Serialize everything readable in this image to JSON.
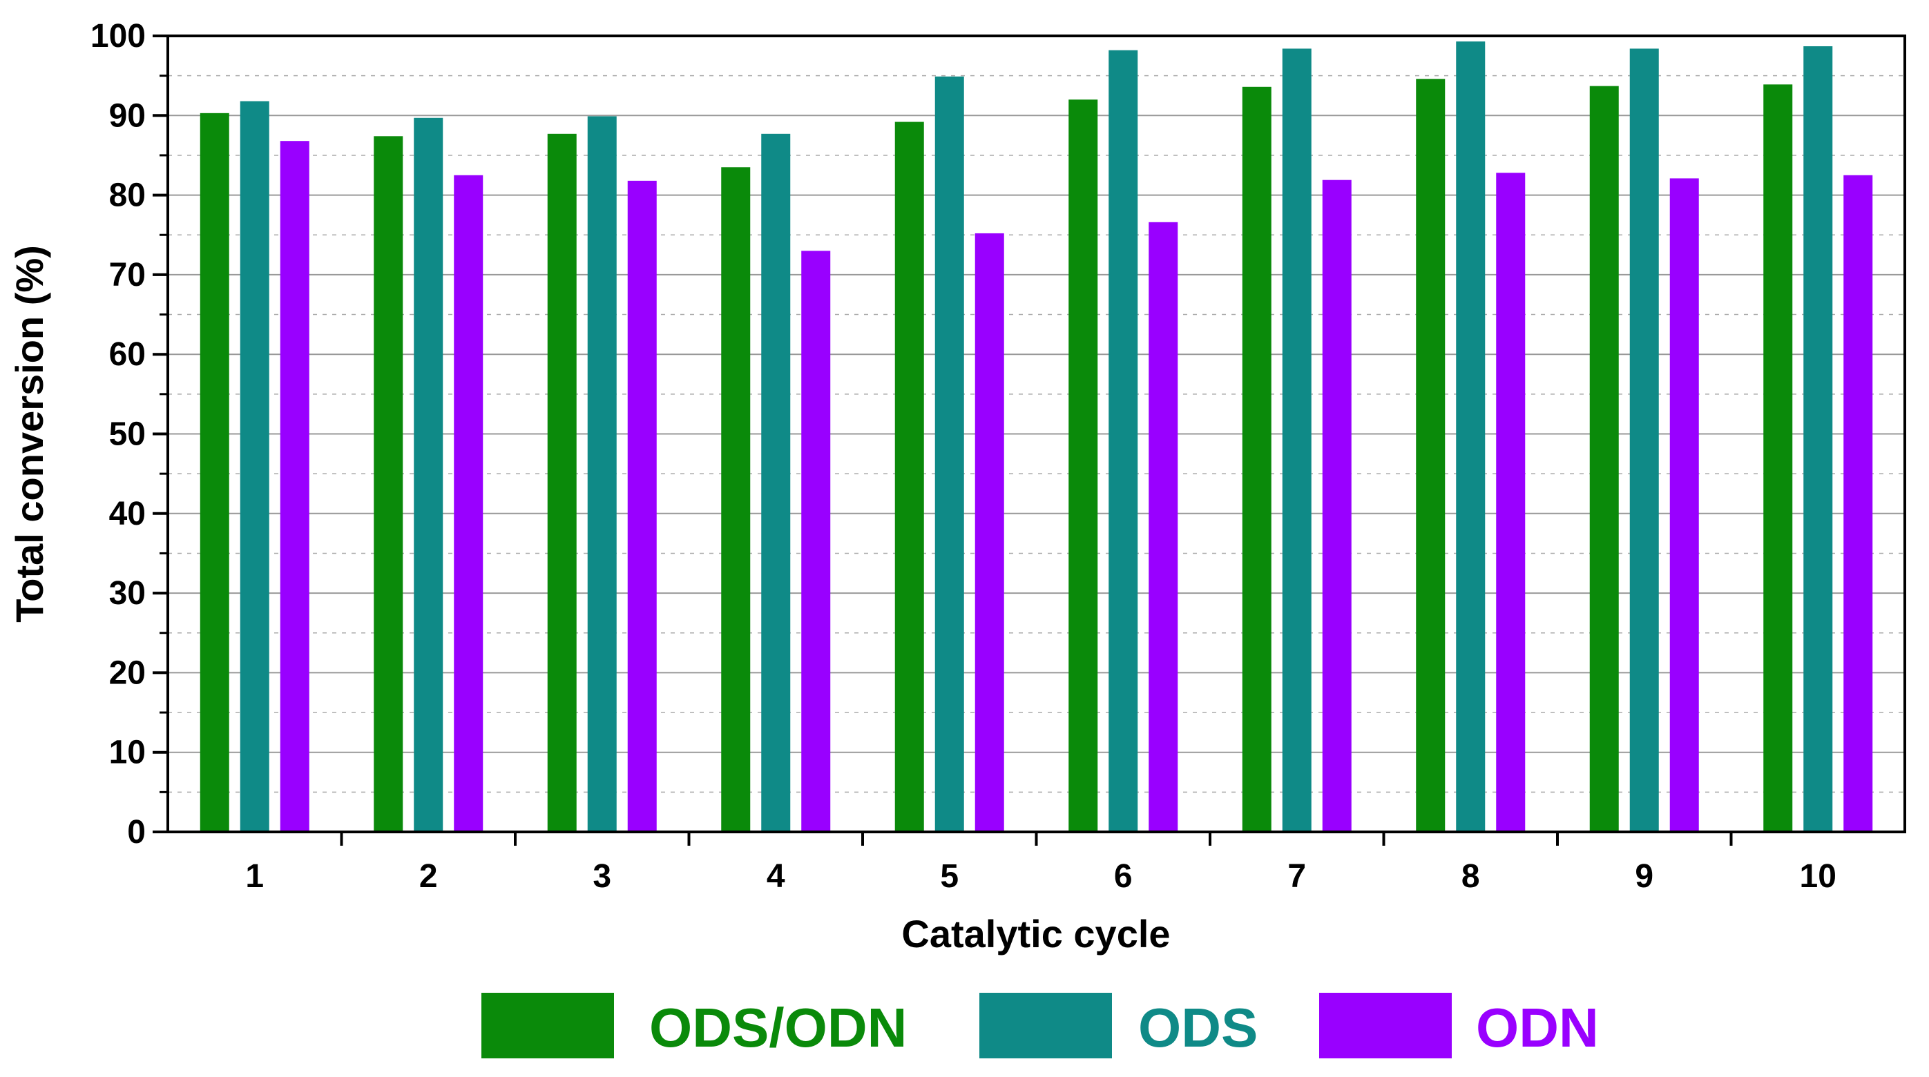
{
  "chart_data": {
    "type": "bar",
    "title": "",
    "xlabel": "Catalytic cycle",
    "ylabel": "Total conversion (%)",
    "ylim": [
      0,
      100
    ],
    "yticks": [
      "0",
      "10",
      "20",
      "30",
      "40",
      "50",
      "60",
      "70",
      "80",
      "90",
      "100"
    ],
    "categories": [
      "1",
      "2",
      "3",
      "4",
      "5",
      "6",
      "7",
      "8",
      "9",
      "10"
    ],
    "grid": "horizontal dashed",
    "legend_position": "bottom",
    "series": [
      {
        "name": "ODS/ODN",
        "color": "#0a8a0a",
        "values": [
          90.3,
          87.4,
          87.7,
          83.5,
          89.2,
          92.0,
          93.6,
          94.6,
          93.7,
          93.9
        ]
      },
      {
        "name": "ODS",
        "color": "#0f8a87",
        "values": [
          91.8,
          89.7,
          89.9,
          87.7,
          94.9,
          98.2,
          98.4,
          99.3,
          98.4,
          98.7
        ]
      },
      {
        "name": "ODN",
        "color": "#9900ff",
        "values": [
          86.8,
          82.5,
          81.8,
          73.0,
          75.2,
          76.6,
          81.9,
          82.8,
          82.1,
          82.5
        ]
      }
    ]
  }
}
